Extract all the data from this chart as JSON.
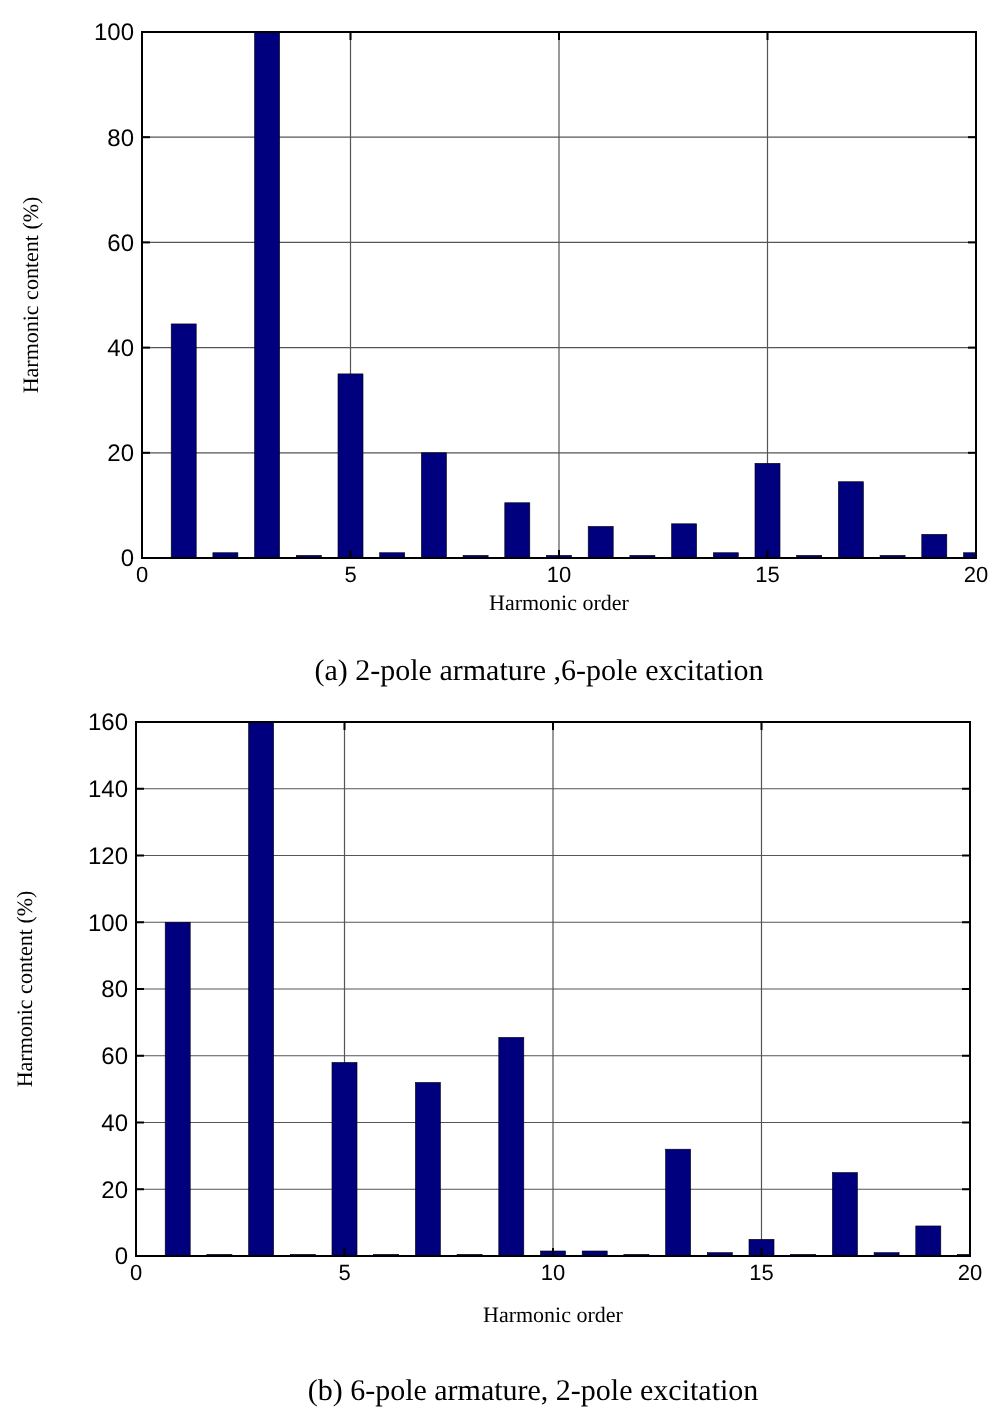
{
  "chart_data": [
    {
      "type": "bar",
      "title": "(a) 2-pole armature ,6-pole excitation",
      "xlabel": "Harmonic order",
      "ylabel": "Harmonic content (%)",
      "x": [
        1,
        2,
        3,
        4,
        5,
        6,
        7,
        8,
        9,
        10,
        11,
        12,
        13,
        14,
        15,
        16,
        17,
        18,
        19,
        20
      ],
      "values": [
        44.5,
        1,
        100,
        0.5,
        35,
        1,
        20,
        0.5,
        10.5,
        0.5,
        6,
        0.5,
        6.5,
        1,
        18,
        0.5,
        14.5,
        0.5,
        4.5,
        1
      ],
      "color": "#00007f",
      "xlim": [
        0,
        20
      ],
      "xticks": [
        0,
        5,
        10,
        15,
        20
      ],
      "ylim": [
        0,
        100
      ],
      "yticks": [
        0,
        20,
        40,
        60,
        80,
        100
      ],
      "grid": true
    },
    {
      "type": "bar",
      "title": "(b) 6-pole armature, 2-pole excitation",
      "xlabel": "Harmonic order",
      "ylabel": "Harmonic content (%)",
      "x": [
        1,
        2,
        3,
        4,
        5,
        6,
        7,
        8,
        9,
        10,
        11,
        12,
        13,
        14,
        15,
        16,
        17,
        18,
        19,
        20
      ],
      "values": [
        100,
        0.5,
        160,
        0.5,
        58,
        0.5,
        52,
        0.5,
        65.5,
        1.5,
        1.5,
        0.5,
        32,
        1,
        5,
        0.5,
        25,
        1,
        9,
        0.5
      ],
      "color": "#00007f",
      "xlim": [
        0,
        20
      ],
      "xticks": [
        0,
        5,
        10,
        15,
        20
      ],
      "ylim": [
        0,
        160
      ],
      "yticks": [
        0,
        20,
        40,
        60,
        80,
        100,
        120,
        140,
        160
      ],
      "grid": true
    }
  ]
}
